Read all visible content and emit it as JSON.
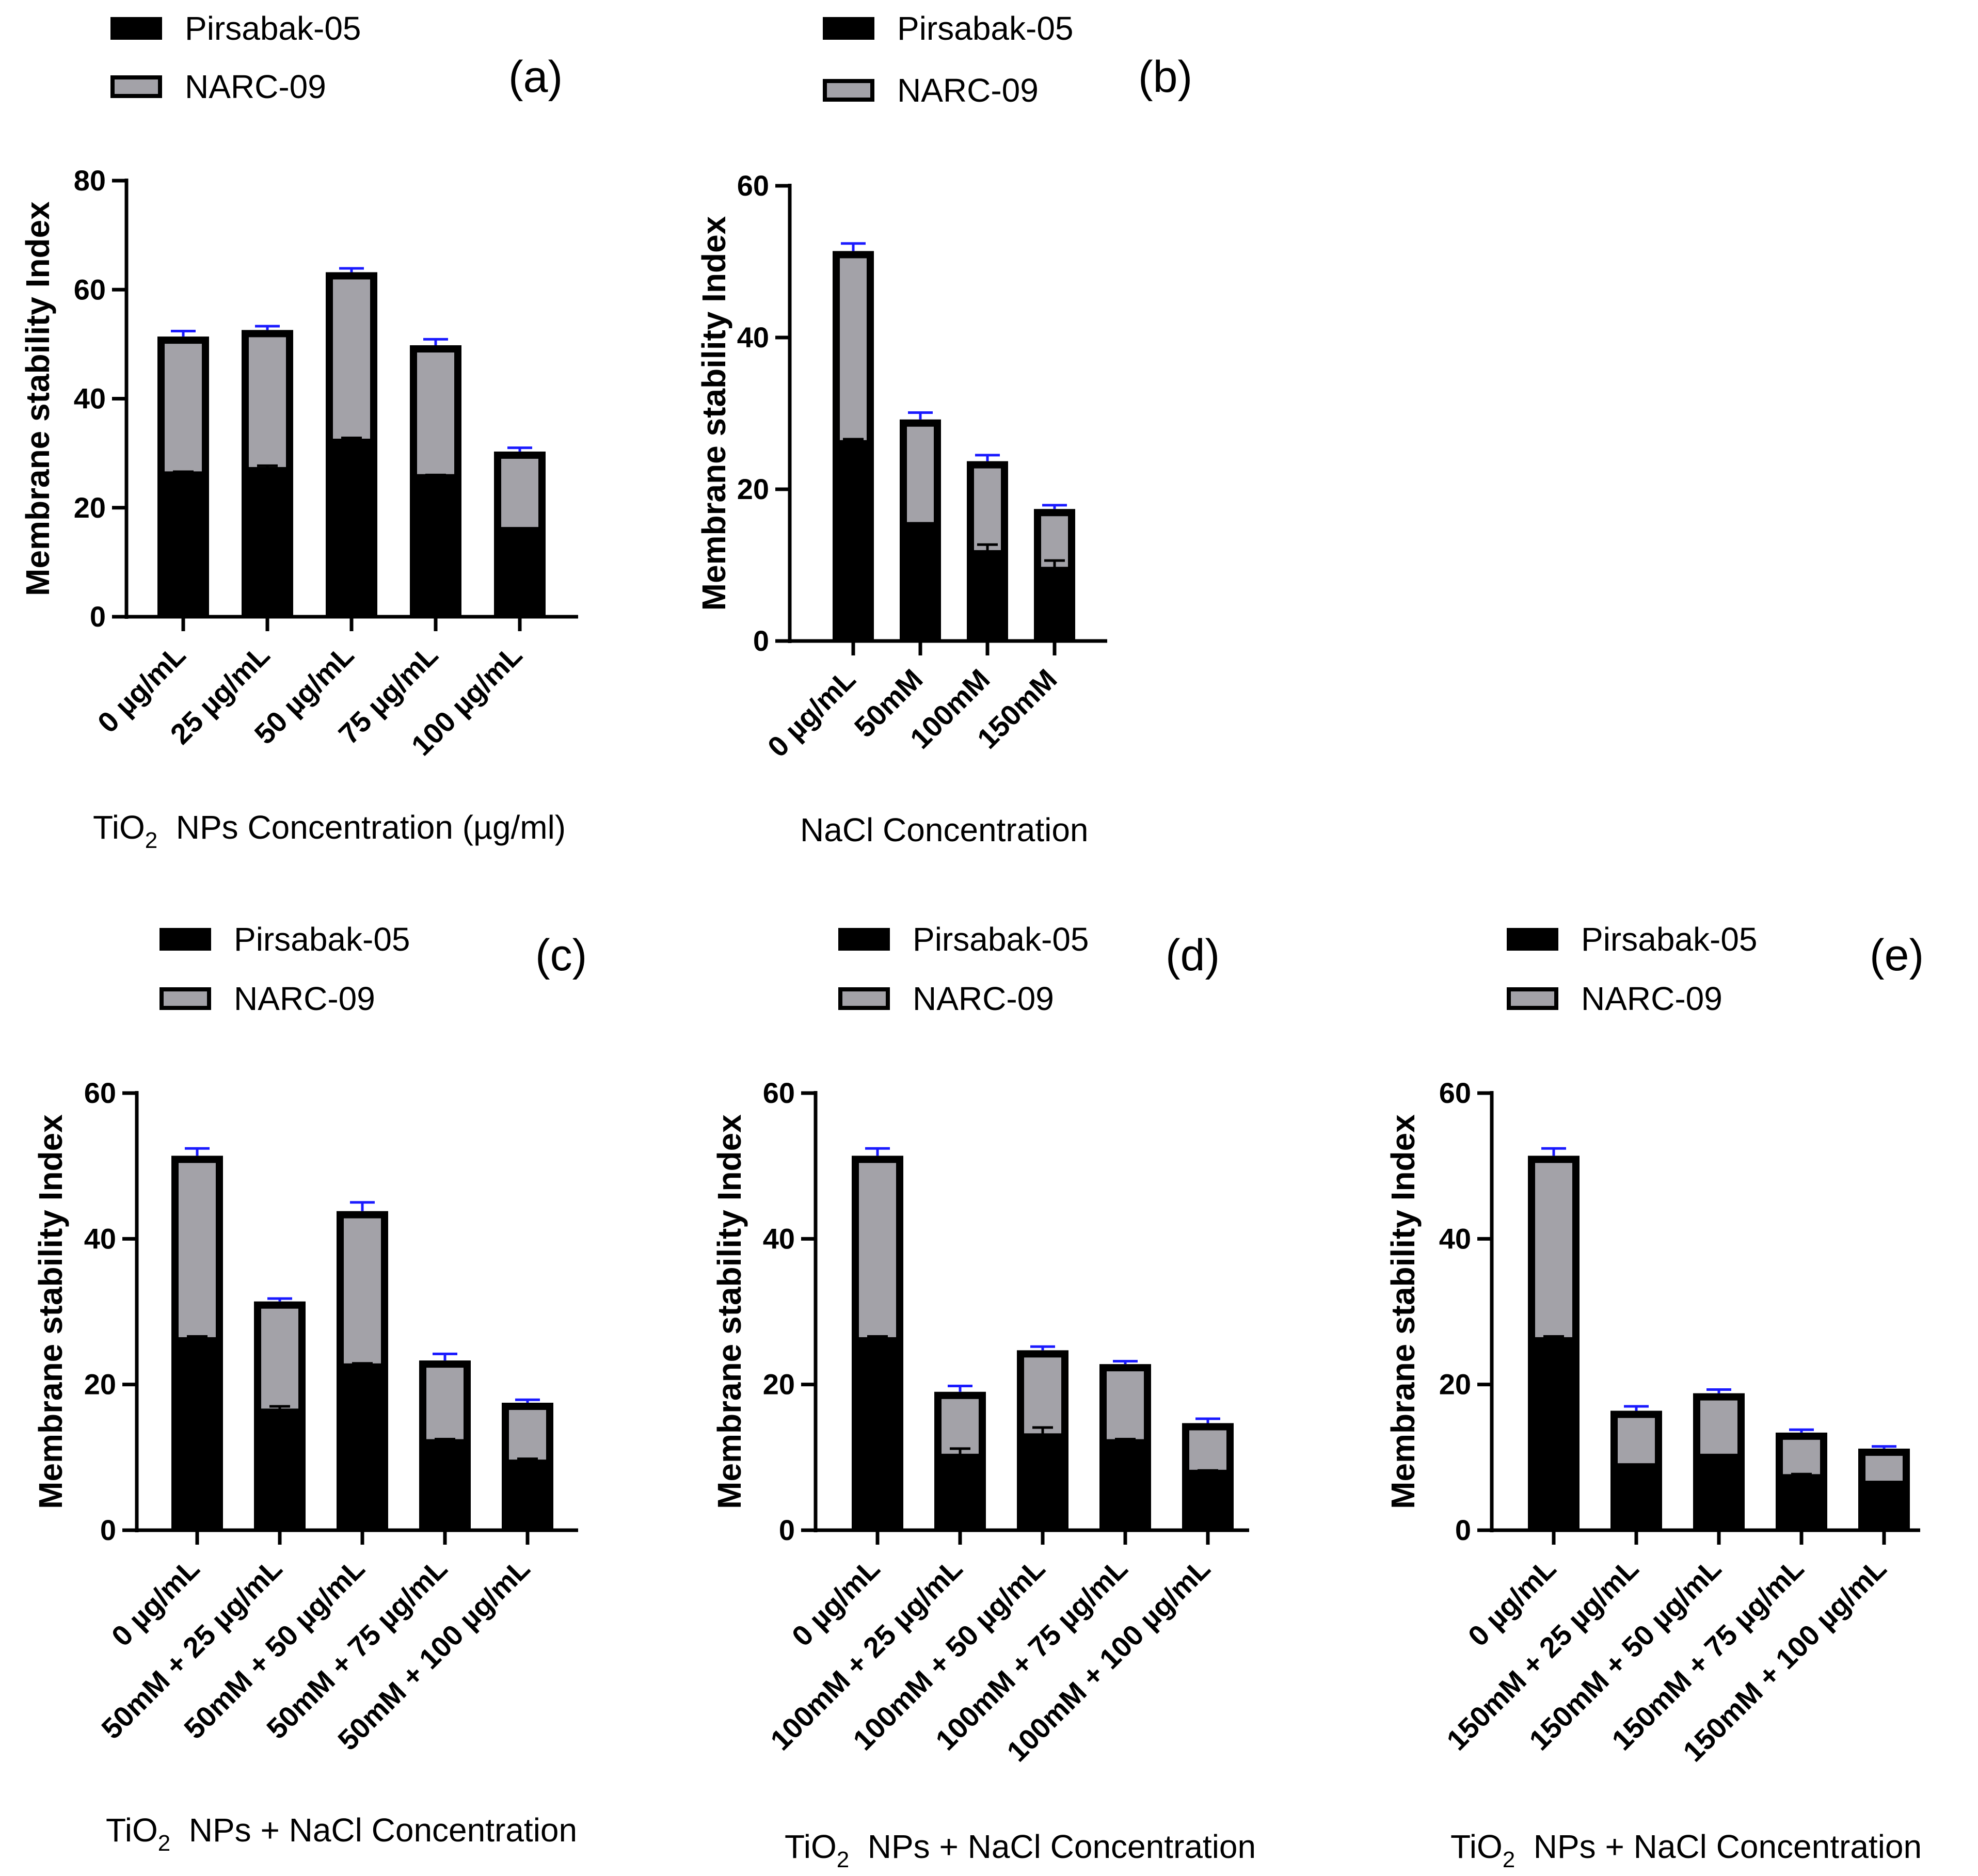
{
  "figure": {
    "series_names": [
      "Pirsabak-05",
      "NARC-09"
    ],
    "colors": {
      "pirsabak": "#000000",
      "narc": "#a3a2a8",
      "error_bar": "#1a1aff"
    }
  },
  "chart_data": [
    {
      "type": "bar",
      "stacked": true,
      "panel_label": "(a)",
      "ylabel": "Membrane stability  Index",
      "xlabel_prefix": "TiO",
      "xlabel_sub": "2",
      "xlabel_suffix": "  NPs Concentration (µg/ml)",
      "ylim": [
        0,
        80
      ],
      "yticks": [
        "0",
        "20",
        "40",
        "60",
        "80"
      ],
      "categories": [
        "0 µg/mL",
        "25 µg/mL",
        "50 µg/mL",
        "75 µg/mL",
        "100 µg/mL"
      ],
      "series": [
        {
          "name": "Pirsabak-05",
          "values": [
            26,
            26.8,
            32,
            25.5,
            15.8
          ],
          "errors": [
            0.6,
            0.9,
            0.8,
            0.5,
            0.3
          ]
        },
        {
          "name": "NARC-09",
          "values": [
            25.4,
            25.8,
            31.2,
            24.3,
            14.5
          ],
          "errors": [
            1.0,
            0.7,
            0.7,
            1.1,
            0.7
          ]
        }
      ]
    },
    {
      "type": "bar",
      "stacked": true,
      "panel_label": "(b)",
      "ylabel": "Membrane stability  Index",
      "xlabel": "NaCl Concentration",
      "ylim": [
        0,
        60
      ],
      "yticks": [
        "0",
        "20",
        "40",
        "60"
      ],
      "categories": [
        "0 µg/mL",
        "50mM",
        "100mM",
        "150mM"
      ],
      "series": [
        {
          "name": "Pirsabak-05",
          "values": [
            26,
            15.2,
            11.5,
            9.3
          ],
          "errors": [
            0.6,
            0.3,
            1.2,
            1.3
          ]
        },
        {
          "name": "NARC-09",
          "values": [
            25.4,
            14,
            12.2,
            8.1
          ],
          "errors": [
            1.0,
            0.9,
            0.8,
            0.5
          ]
        }
      ]
    },
    {
      "type": "bar",
      "stacked": true,
      "panel_label": "(c)",
      "ylabel": "Membrane stability  Index",
      "xlabel_prefix": "TiO",
      "xlabel_sub": "2",
      "xlabel_suffix": "  NPs + NaCl Concentration",
      "ylim": [
        0,
        60
      ],
      "yticks": [
        "0",
        "20",
        "40",
        "60"
      ],
      "categories": [
        "0 µg/mL",
        "50mM + 25 µg/mL",
        "50mM + 50 µg/mL",
        "50mM + 75 µg/mL",
        "50mM + 100 µg/mL"
      ],
      "series": [
        {
          "name": "Pirsabak-05",
          "values": [
            26,
            16.2,
            22.4,
            12,
            9.2
          ],
          "errors": [
            0.6,
            0.8,
            0.5,
            0.5,
            0.6
          ]
        },
        {
          "name": "NARC-09",
          "values": [
            25.4,
            15.2,
            21.4,
            11.3,
            8.3
          ],
          "errors": [
            1.0,
            0.4,
            1.2,
            0.9,
            0.4
          ]
        }
      ]
    },
    {
      "type": "bar",
      "stacked": true,
      "panel_label": "(d)",
      "ylabel": "Membrane stability  Index",
      "xlabel_prefix": "TiO",
      "xlabel_sub": "2",
      "xlabel_suffix": "  NPs + NaCl Concentration",
      "ylim": [
        0,
        60
      ],
      "yticks": [
        "0",
        "20",
        "40",
        "60"
      ],
      "categories": [
        "0 µg/mL",
        "100mM + 25 µg/mL",
        "100mM + 50 µg/mL",
        "100mM + 75 µg/mL",
        "100mM + 100 µg/mL"
      ],
      "series": [
        {
          "name": "Pirsabak-05",
          "values": [
            26,
            10,
            12.8,
            12,
            7.8
          ],
          "errors": [
            0.6,
            1.2,
            1.3,
            0.5,
            0.4
          ]
        },
        {
          "name": "NARC-09",
          "values": [
            25.4,
            9,
            11.9,
            10.8,
            6.9
          ],
          "errors": [
            1.0,
            0.8,
            0.5,
            0.4,
            0.6
          ]
        }
      ]
    },
    {
      "type": "bar",
      "stacked": true,
      "panel_label": "(e)",
      "ylabel": "Membrane stability  Index",
      "xlabel_prefix": "TiO",
      "xlabel_sub": "2",
      "xlabel_suffix": "  NPs + NaCl Concentration",
      "ylim": [
        0,
        60
      ],
      "yticks": [
        "0",
        "20",
        "40",
        "60"
      ],
      "categories": [
        "0 µg/mL",
        "150mM + 25 µg/mL",
        "150mM + 50 µg/mL",
        "150mM + 75 µg/mL",
        "150mM + 100 µg/mL"
      ],
      "series": [
        {
          "name": "Pirsabak-05",
          "values": [
            26,
            8.7,
            10,
            7.2,
            6.3
          ],
          "errors": [
            0.6,
            0.3,
            0.2,
            0.5,
            0.3
          ]
        },
        {
          "name": "NARC-09",
          "values": [
            25.4,
            7.7,
            8.8,
            6.2,
            4.9
          ],
          "errors": [
            1.0,
            0.6,
            0.5,
            0.4,
            0.3
          ]
        }
      ]
    }
  ]
}
